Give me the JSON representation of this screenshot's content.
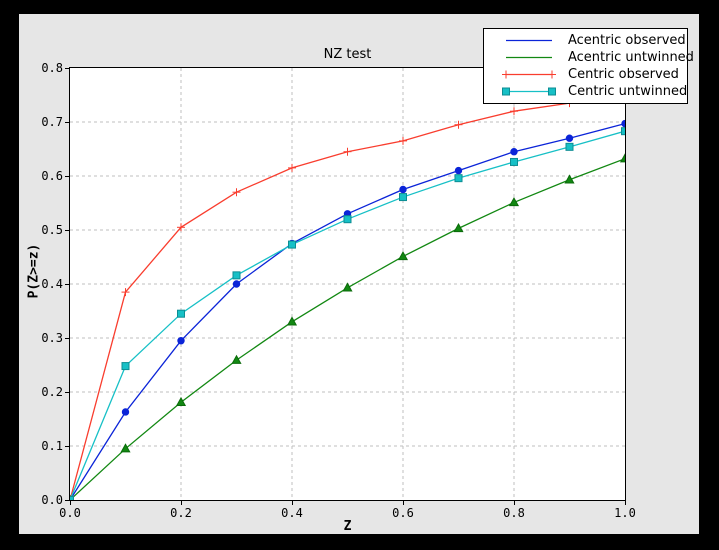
{
  "figure": {
    "window_bg": "#000000",
    "figure_bg": "#e6e6e6",
    "plot_bg": "#ffffff",
    "grid_color": "#bfbfbf"
  },
  "chart_data": {
    "type": "line",
    "title": "NZ test",
    "xlabel": "Z",
    "ylabel": "P(Z>=z)",
    "xlim": [
      0.0,
      1.0
    ],
    "ylim": [
      0.0,
      0.8
    ],
    "grid": true,
    "legend_position": "upper right",
    "xticks": [
      "0.0",
      "0.2",
      "0.4",
      "0.6",
      "0.8",
      "1.0"
    ],
    "xtick_values": [
      0.0,
      0.2,
      0.4,
      0.6,
      0.8,
      1.0
    ],
    "yticks": [
      "0.0",
      "0.1",
      "0.2",
      "0.3",
      "0.4",
      "0.5",
      "0.6",
      "0.7",
      "0.8"
    ],
    "ytick_values": [
      0.0,
      0.1,
      0.2,
      0.3,
      0.4,
      0.5,
      0.6,
      0.7,
      0.8
    ],
    "x": [
      0.0,
      0.1,
      0.2,
      0.3,
      0.4,
      0.5,
      0.6,
      0.7,
      0.8,
      0.9,
      1.0
    ],
    "series": [
      {
        "name": "Acentric observed",
        "color": "#0b24d8",
        "marker": "circle",
        "marker_edge": "#0b24d8",
        "values": [
          0.0,
          0.163,
          0.295,
          0.4,
          0.475,
          0.53,
          0.575,
          0.61,
          0.645,
          0.67,
          0.697
        ]
      },
      {
        "name": "Acentric untwinned",
        "color": "#128812",
        "marker": "triangle",
        "marker_edge": "#0b6b0b",
        "values": [
          0.0,
          0.095,
          0.181,
          0.259,
          0.33,
          0.393,
          0.451,
          0.503,
          0.551,
          0.593,
          0.632
        ]
      },
      {
        "name": "Centric observed",
        "color": "#f93d2e",
        "marker": "plus",
        "marker_edge": "#f93d2e",
        "values": [
          0.0,
          0.385,
          0.505,
          0.57,
          0.615,
          0.645,
          0.665,
          0.695,
          0.72,
          0.735,
          0.755
        ]
      },
      {
        "name": "Centric untwinned",
        "color": "#17c0c6",
        "marker": "square",
        "marker_edge": "#0d8d93",
        "values": [
          0.0,
          0.248,
          0.345,
          0.416,
          0.473,
          0.52,
          0.561,
          0.596,
          0.626,
          0.654,
          0.683
        ]
      }
    ]
  }
}
